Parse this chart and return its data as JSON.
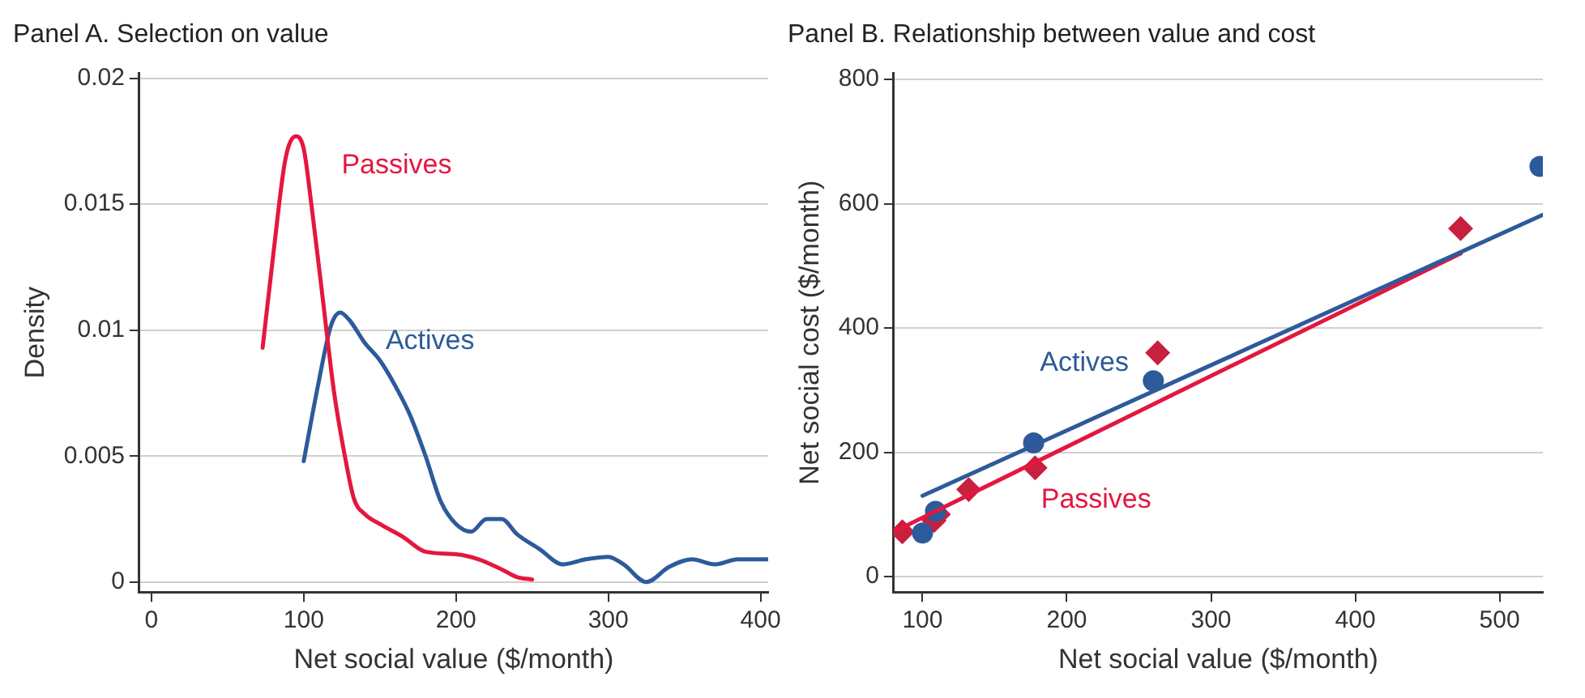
{
  "chart_data": [
    {
      "type": "line",
      "title": "Panel A. Selection on value",
      "xlabel": "Net social value ($/month)",
      "ylabel": "Density",
      "xlim": [
        -8,
        405
      ],
      "ylim": [
        -0.0004,
        0.0202
      ],
      "xticks": [
        0,
        100,
        200,
        300,
        400
      ],
      "yticks": [
        0,
        0.005,
        0.01,
        0.015,
        0.02
      ],
      "grid": "y",
      "legend": false,
      "marker": "none",
      "series": [
        {
          "name": "Passives",
          "color": "#e4173f",
          "x": [
            73,
            80,
            88,
            95,
            100,
            105,
            112,
            120,
            127,
            133,
            140,
            150,
            165,
            180,
            200,
            215,
            230,
            240,
            250
          ],
          "values": [
            0.0093,
            0.013,
            0.0168,
            0.0177,
            0.0172,
            0.015,
            0.0115,
            0.0075,
            0.005,
            0.0033,
            0.0027,
            0.0023,
            0.0018,
            0.0012,
            0.0011,
            0.0009,
            0.0005,
            0.0002,
            0.0001
          ]
        },
        {
          "name": "Actives",
          "color": "#2d5a9a",
          "x": [
            100,
            110,
            118,
            124,
            130,
            140,
            150,
            160,
            170,
            180,
            190,
            200,
            210,
            220,
            230,
            240,
            255,
            270,
            285,
            300,
            310,
            325,
            340,
            355,
            370,
            385,
            405
          ],
          "values": [
            0.0048,
            0.008,
            0.0102,
            0.0107,
            0.0104,
            0.0095,
            0.0088,
            0.0078,
            0.0066,
            0.005,
            0.0032,
            0.0023,
            0.002,
            0.0025,
            0.0025,
            0.0019,
            0.0013,
            0.0007,
            0.0009,
            0.001,
            0.0007,
            0,
            0.0006,
            0.0009,
            0.0007,
            0.0009,
            0.0009
          ]
        }
      ]
    },
    {
      "type": "scatter",
      "title": "Panel B. Relationship between value and cost",
      "xlabel": "Net social value ($/month)",
      "ylabel": "Net social cost ($/month)",
      "xlim": [
        80,
        530
      ],
      "ylim": [
        -25,
        810
      ],
      "xticks": [
        100,
        200,
        300,
        400,
        500
      ],
      "yticks": [
        0,
        200,
        400,
        600,
        800
      ],
      "grid": "y",
      "legend": false,
      "series": [
        {
          "type": "line",
          "name": "Actives",
          "color": "#2d5a9a",
          "marker": "none",
          "x": [
            100,
            530
          ],
          "values": [
            130,
            582
          ]
        },
        {
          "type": "line",
          "name": "Passives",
          "color": "#e4173f",
          "marker": "none",
          "x": [
            80,
            473
          ],
          "values": [
            72,
            520
          ]
        },
        {
          "color": "#2d5a9a",
          "marker": "circle",
          "x": [
            100,
            109,
            177,
            260,
            528
          ],
          "values": [
            70,
            105,
            215,
            315,
            660
          ]
        },
        {
          "color": "#c8203f",
          "marker": "diamond",
          "x": [
            86,
            108,
            111,
            132,
            178,
            263,
            473
          ],
          "values": [
            72,
            90,
            100,
            140,
            175,
            360,
            560
          ]
        }
      ]
    }
  ]
}
